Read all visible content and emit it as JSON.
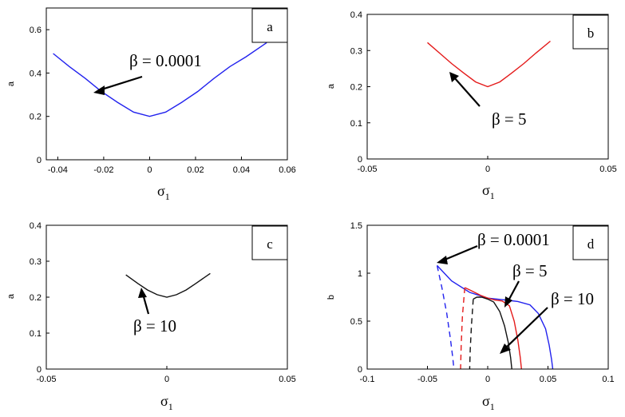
{
  "chart_data": [
    {
      "panel_label": "a",
      "type": "line",
      "ylabel": "a",
      "xlabel": "σ",
      "xlabel_sub": "1",
      "xlim": [
        -0.045,
        0.06
      ],
      "ylim": [
        0,
        0.7
      ],
      "xticks": [
        "-0.04",
        "-0.02",
        "0",
        "0.02",
        "0.04",
        "0.06"
      ],
      "xtick_values": [
        -0.04,
        -0.02,
        0,
        0.02,
        0.04,
        0.06
      ],
      "yticks": [
        "0",
        "0.2",
        "0.4",
        "0.6"
      ],
      "ytick_values": [
        0,
        0.2,
        0.4,
        0.6
      ],
      "series": [
        {
          "color": "#2222ee",
          "style": "solid",
          "x": [
            -0.042,
            -0.035,
            -0.028,
            -0.021,
            -0.014,
            -0.007,
            0,
            0.007,
            0.014,
            0.021,
            0.028,
            0.035,
            0.042,
            0.051
          ],
          "y": [
            0.49,
            0.43,
            0.375,
            0.315,
            0.265,
            0.22,
            0.2,
            0.22,
            0.265,
            0.315,
            0.375,
            0.43,
            0.475,
            0.54
          ]
        }
      ],
      "annotation": {
        "text": "β = 0.0001",
        "arrow_to": [
          -0.023,
          0.31
        ]
      }
    },
    {
      "panel_label": "b",
      "type": "line",
      "ylabel": "a",
      "xlabel": "σ",
      "xlabel_sub": "1",
      "xlim": [
        -0.05,
        0.05
      ],
      "ylim": [
        0,
        0.4
      ],
      "xticks": [
        "-0.05",
        "0",
        "0.05"
      ],
      "xtick_values": [
        -0.05,
        0,
        0.05
      ],
      "yticks": [
        "0",
        "0.1",
        "0.2",
        "0.3",
        "0.4"
      ],
      "ytick_values": [
        0,
        0.1,
        0.2,
        0.3,
        0.4
      ],
      "series": [
        {
          "color": "#e41a1a",
          "style": "solid",
          "x": [
            -0.025,
            -0.02,
            -0.015,
            -0.01,
            -0.005,
            0,
            0.005,
            0.01,
            0.015,
            0.02,
            0.026
          ],
          "y": [
            0.322,
            0.293,
            0.264,
            0.238,
            0.213,
            0.2,
            0.213,
            0.238,
            0.264,
            0.293,
            0.326
          ]
        }
      ],
      "annotation": {
        "text": "β = 5",
        "arrow_to": [
          -0.016,
          0.245
        ]
      }
    },
    {
      "panel_label": "c",
      "type": "line",
      "ylabel": "a",
      "xlabel": "σ",
      "xlabel_sub": "1",
      "xlim": [
        -0.05,
        0.05
      ],
      "ylim": [
        0,
        0.4
      ],
      "xticks": [
        "-0.05",
        "0",
        "0.05"
      ],
      "xtick_values": [
        -0.05,
        0,
        0.05
      ],
      "yticks": [
        "0",
        "0.1",
        "0.2",
        "0.3",
        "0.4"
      ],
      "ytick_values": [
        0,
        0.1,
        0.2,
        0.3,
        0.4
      ],
      "series": [
        {
          "color": "#111111",
          "style": "solid",
          "x": [
            -0.017,
            -0.012,
            -0.008,
            -0.004,
            0,
            0.004,
            0.008,
            0.012,
            0.018
          ],
          "y": [
            0.262,
            0.238,
            0.22,
            0.207,
            0.2,
            0.207,
            0.22,
            0.238,
            0.266
          ]
        }
      ],
      "annotation": {
        "text": "β = 10",
        "arrow_to": [
          -0.011,
          0.228
        ]
      }
    },
    {
      "panel_label": "d",
      "type": "line",
      "ylabel": "b",
      "xlabel": "σ",
      "xlabel_sub": "1",
      "xlim": [
        -0.1,
        0.1
      ],
      "ylim": [
        0,
        1.5
      ],
      "xticks": [
        "-0.1",
        "-0.05",
        "0",
        "0.05",
        "0.1"
      ],
      "xtick_values": [
        -0.1,
        -0.05,
        0,
        0.05,
        0.1
      ],
      "yticks": [
        "0",
        "0.5",
        "1",
        "1.5"
      ],
      "ytick_values": [
        0,
        0.5,
        1,
        1.5
      ],
      "series": [
        {
          "color": "#2222ee",
          "style": "solid",
          "x": [
            -0.042,
            -0.03,
            -0.015,
            0,
            0.015,
            0.025,
            0.035,
            0.042,
            0.048,
            0.051,
            0.053,
            0.054
          ],
          "y": [
            1.08,
            0.92,
            0.8,
            0.74,
            0.72,
            0.705,
            0.67,
            0.58,
            0.42,
            0.25,
            0.1,
            0.0
          ]
        },
        {
          "color": "#2222ee",
          "style": "dashed",
          "x": [
            -0.042,
            -0.038,
            -0.034,
            -0.031,
            -0.029,
            -0.028
          ],
          "y": [
            1.08,
            0.85,
            0.58,
            0.32,
            0.12,
            0.0
          ]
        },
        {
          "color": "#e41a1a",
          "style": "solid",
          "x": [
            -0.019,
            -0.014,
            -0.006,
            0,
            0.006,
            0.012,
            0.018,
            0.022,
            0.025,
            0.027,
            0.028
          ],
          "y": [
            0.85,
            0.82,
            0.77,
            0.74,
            0.72,
            0.71,
            0.66,
            0.5,
            0.3,
            0.12,
            0.0
          ]
        },
        {
          "color": "#e41a1a",
          "style": "dashed",
          "x": [
            -0.019,
            -0.021,
            -0.022,
            -0.0225
          ],
          "y": [
            0.85,
            0.55,
            0.25,
            0.0
          ]
        },
        {
          "color": "#111111",
          "style": "solid",
          "x": [
            -0.012,
            -0.009,
            -0.005,
            0,
            0.005,
            0.01,
            0.014,
            0.017,
            0.019,
            0.02
          ],
          "y": [
            0.73,
            0.75,
            0.75,
            0.73,
            0.7,
            0.6,
            0.45,
            0.28,
            0.12,
            0.0
          ]
        },
        {
          "color": "#111111",
          "style": "dashed",
          "x": [
            -0.012,
            -0.0135,
            -0.0145,
            -0.015
          ],
          "y": [
            0.73,
            0.45,
            0.2,
            0.0
          ]
        }
      ],
      "annotations": [
        {
          "text": "β = 0.0001",
          "arrow_to": [
            -0.042,
            1.08
          ]
        },
        {
          "text": "β = 5",
          "arrow_to": [
            0.017,
            0.69
          ]
        },
        {
          "text": "β = 10",
          "arrow_to": [
            0.011,
            0.12
          ]
        }
      ]
    }
  ]
}
